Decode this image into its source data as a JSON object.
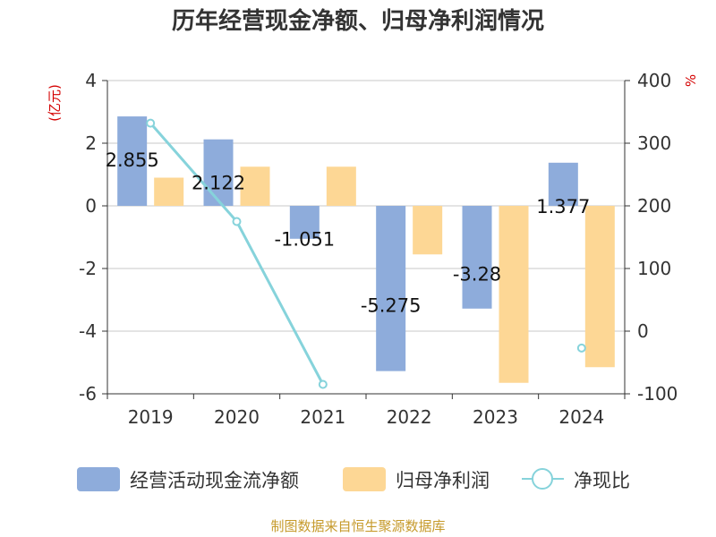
{
  "chart_data": {
    "type": "bar",
    "title": "历年经营现金净额、归母净利润情况",
    "left_unit": "(亿元)",
    "right_unit": "%",
    "categories": [
      "2019",
      "2020",
      "2021",
      "2022",
      "2023",
      "2024"
    ],
    "left_axis": {
      "min": -6,
      "max": 4,
      "ticks": [
        "4",
        "2",
        "0",
        "-2",
        "-4",
        "-6"
      ]
    },
    "right_axis": {
      "min": -100,
      "max": 400,
      "ticks": [
        "400",
        "300",
        "200",
        "100",
        "0",
        "-100"
      ]
    },
    "grid": true,
    "legend_position": "bottom",
    "series": [
      {
        "name": "经营活动现金流净额",
        "type": "bar",
        "axis": "left",
        "color": "#8eacdb",
        "values": [
          2.855,
          2.122,
          -1.051,
          -5.275,
          -3.28,
          1.377
        ],
        "labels": [
          "2.855",
          "2.122",
          "-1.051",
          "-5.275",
          "-3.28",
          "1.377"
        ]
      },
      {
        "name": "归母净利润",
        "type": "bar",
        "axis": "left",
        "color": "#fdd795",
        "values": [
          0.9,
          1.25,
          1.25,
          -1.55,
          -5.65,
          -5.15
        ]
      },
      {
        "name": "净现比",
        "type": "line",
        "axis": "right",
        "color": "#86d3db",
        "values": [
          332,
          175,
          -85,
          null,
          null,
          -27
        ]
      }
    ],
    "source": "制图数据来自恒生聚源数据库"
  }
}
